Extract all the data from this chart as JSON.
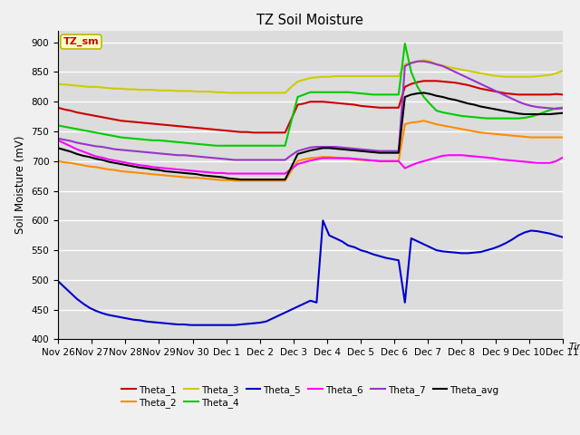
{
  "title": "TZ Soil Moisture",
  "ylabel": "Soil Moisture (mV)",
  "ylim": [
    400,
    920
  ],
  "yticks": [
    400,
    450,
    500,
    550,
    600,
    650,
    700,
    750,
    800,
    850,
    900
  ],
  "legend_label": "TZ_sm",
  "plot_bg": "#dcdcdc",
  "fig_bg": "#f0f0f0",
  "series_order": [
    "Theta_1",
    "Theta_2",
    "Theta_3",
    "Theta_4",
    "Theta_5",
    "Theta_6",
    "Theta_7",
    "Theta_avg"
  ],
  "series": {
    "Theta_1": {
      "color": "#cc0000",
      "x": [
        0,
        0.5,
        1,
        1.5,
        2,
        2.5,
        3,
        3.5,
        4,
        4.5,
        5,
        5.5,
        6,
        6.5,
        7,
        7.5,
        8,
        8.5,
        9,
        9.5,
        10,
        10.5,
        11,
        11.5,
        12,
        12.5,
        13,
        13.5,
        14,
        14.5,
        15,
        15.5,
        16,
        16.5,
        17,
        17.5,
        18,
        18.5,
        19,
        19.5,
        20,
        20.5,
        21,
        21.5,
        22,
        22.5,
        23,
        23.5,
        24,
        24.5,
        25,
        25.5,
        26,
        26.5,
        27,
        27.5,
        28,
        28.5,
        29,
        29.5,
        30,
        30.5,
        31,
        31.5,
        32,
        32.5,
        33,
        33.5,
        34,
        34.5,
        35,
        35.5,
        36,
        36.5,
        37,
        37.5,
        38,
        38.5,
        39,
        39.5,
        40,
        40.5
      ],
      "y": [
        790,
        787,
        785,
        782,
        780,
        778,
        776,
        774,
        772,
        770,
        768,
        767,
        766,
        765,
        764,
        763,
        762,
        761,
        760,
        759,
        758,
        757,
        756,
        755,
        754,
        753,
        752,
        751,
        750,
        749,
        749,
        748,
        748,
        748,
        748,
        748,
        748,
        771,
        795,
        797,
        800,
        800,
        800,
        799,
        798,
        797,
        796,
        795,
        793,
        792,
        791,
        790,
        790,
        790,
        790,
        825,
        830,
        833,
        835,
        835,
        835,
        834,
        833,
        832,
        830,
        828,
        825,
        822,
        820,
        818,
        816,
        814,
        813,
        812,
        812,
        812,
        812,
        812,
        812,
        813,
        812,
        811
      ]
    },
    "Theta_2": {
      "color": "#ff8c00",
      "x": [
        0,
        0.5,
        1,
        1.5,
        2,
        2.5,
        3,
        3.5,
        4,
        4.5,
        5,
        5.5,
        6,
        6.5,
        7,
        7.5,
        8,
        8.5,
        9,
        9.5,
        10,
        10.5,
        11,
        11.5,
        12,
        12.5,
        13,
        13.5,
        14,
        14.5,
        15,
        15.5,
        16,
        16.5,
        17,
        17.5,
        18,
        18.5,
        19,
        19.5,
        20,
        20.5,
        21,
        21.5,
        22,
        22.5,
        23,
        23.5,
        24,
        24.5,
        25,
        25.5,
        26,
        26.5,
        27,
        27.5,
        28,
        28.5,
        29,
        29.5,
        30,
        30.5,
        31,
        31.5,
        32,
        32.5,
        33,
        33.5,
        34,
        34.5,
        35,
        35.5,
        36,
        36.5,
        37,
        37.5,
        38,
        38.5,
        39,
        39.5,
        40,
        40.5
      ],
      "y": [
        700,
        698,
        697,
        695,
        693,
        691,
        690,
        688,
        686,
        685,
        683,
        682,
        681,
        680,
        679,
        678,
        677,
        676,
        675,
        674,
        673,
        672,
        672,
        671,
        670,
        669,
        668,
        668,
        667,
        667,
        667,
        667,
        667,
        667,
        667,
        667,
        667,
        684,
        700,
        703,
        705,
        706,
        707,
        707,
        706,
        705,
        704,
        703,
        702,
        701,
        701,
        700,
        700,
        700,
        700,
        762,
        765,
        766,
        768,
        765,
        762,
        760,
        758,
        756,
        754,
        752,
        750,
        748,
        747,
        746,
        745,
        744,
        743,
        742,
        741,
        740,
        740,
        740,
        740,
        740,
        740,
        740
      ]
    },
    "Theta_3": {
      "color": "#cccc00",
      "x": [
        0,
        0.5,
        1,
        1.5,
        2,
        2.5,
        3,
        3.5,
        4,
        4.5,
        5,
        5.5,
        6,
        6.5,
        7,
        7.5,
        8,
        8.5,
        9,
        9.5,
        10,
        10.5,
        11,
        11.5,
        12,
        12.5,
        13,
        13.5,
        14,
        14.5,
        15,
        15.5,
        16,
        16.5,
        17,
        17.5,
        18,
        18.5,
        19,
        19.5,
        20,
        20.5,
        21,
        21.5,
        22,
        22.5,
        23,
        23.5,
        24,
        24.5,
        25,
        25.5,
        26,
        26.5,
        27,
        27.5,
        28,
        28.5,
        29,
        29.5,
        30,
        30.5,
        31,
        31.5,
        32,
        32.5,
        33,
        33.5,
        34,
        34.5,
        35,
        35.5,
        36,
        36.5,
        37,
        37.5,
        38,
        38.5,
        39,
        39.5,
        40,
        40.5
      ],
      "y": [
        830,
        829,
        828,
        827,
        826,
        825,
        825,
        824,
        823,
        822,
        822,
        821,
        821,
        820,
        820,
        820,
        819,
        819,
        819,
        818,
        818,
        818,
        817,
        817,
        817,
        816,
        816,
        815,
        815,
        815,
        815,
        815,
        815,
        815,
        815,
        815,
        815,
        825,
        834,
        837,
        840,
        841,
        842,
        842,
        843,
        843,
        843,
        843,
        843,
        843,
        843,
        843,
        843,
        843,
        843,
        863,
        866,
        868,
        870,
        868,
        863,
        861,
        858,
        856,
        854,
        852,
        850,
        848,
        846,
        844,
        843,
        842,
        842,
        842,
        842,
        842,
        843,
        844,
        845,
        848,
        852,
        855
      ]
    },
    "Theta_4": {
      "color": "#00cc00",
      "x": [
        0,
        0.5,
        1,
        1.5,
        2,
        2.5,
        3,
        3.5,
        4,
        4.5,
        5,
        5.5,
        6,
        6.5,
        7,
        7.5,
        8,
        8.5,
        9,
        9.5,
        10,
        10.5,
        11,
        11.5,
        12,
        12.5,
        13,
        13.5,
        14,
        14.5,
        15,
        15.5,
        16,
        16.5,
        17,
        17.5,
        18,
        18.5,
        19,
        19.5,
        20,
        20.5,
        21,
        21.5,
        22,
        22.5,
        23,
        23.5,
        24,
        24.5,
        25,
        25.5,
        26,
        26.5,
        27,
        27.5,
        28,
        28.5,
        29,
        29.5,
        30,
        30.5,
        31,
        31.5,
        32,
        32.5,
        33,
        33.5,
        34,
        34.5,
        35,
        35.5,
        36,
        36.5,
        37,
        37.5,
        38,
        38.5,
        39,
        39.5,
        40,
        40.5
      ],
      "y": [
        760,
        758,
        756,
        754,
        752,
        750,
        748,
        746,
        744,
        742,
        740,
        739,
        738,
        737,
        736,
        735,
        735,
        734,
        733,
        732,
        731,
        730,
        729,
        728,
        727,
        726,
        726,
        726,
        726,
        726,
        726,
        726,
        726,
        726,
        726,
        726,
        726,
        768,
        808,
        812,
        816,
        816,
        816,
        816,
        816,
        816,
        816,
        815,
        814,
        813,
        812,
        812,
        812,
        812,
        812,
        898,
        850,
        825,
        808,
        796,
        785,
        782,
        780,
        778,
        776,
        775,
        774,
        773,
        772,
        772,
        772,
        772,
        772,
        772,
        773,
        775,
        778,
        782,
        786,
        789,
        790,
        790
      ]
    },
    "Theta_5": {
      "color": "#0000cc",
      "x": [
        0,
        0.5,
        1,
        1.5,
        2,
        2.5,
        3,
        3.5,
        4,
        4.5,
        5,
        5.5,
        6,
        6.5,
        7,
        7.5,
        8,
        8.5,
        9,
        9.5,
        10,
        10.5,
        11,
        11.5,
        12,
        12.5,
        13,
        13.5,
        14,
        14.5,
        15,
        15.5,
        16,
        16.5,
        17,
        17.5,
        18,
        18.5,
        19,
        19.5,
        20,
        20.5,
        21,
        21.5,
        22,
        22.5,
        23,
        23.5,
        24,
        24.5,
        25,
        25.5,
        26,
        26.5,
        27,
        27.5,
        28,
        28.5,
        29,
        29.5,
        30,
        30.5,
        31,
        31.5,
        32,
        32.5,
        33,
        33.5,
        34,
        34.5,
        35,
        35.5,
        36,
        36.5,
        37,
        37.5,
        38,
        38.5,
        39,
        39.5,
        40,
        40.5
      ],
      "y": [
        498,
        488,
        478,
        468,
        460,
        453,
        448,
        444,
        441,
        439,
        437,
        435,
        433,
        432,
        430,
        429,
        428,
        427,
        426,
        425,
        425,
        424,
        424,
        424,
        424,
        424,
        424,
        424,
        424,
        425,
        426,
        427,
        428,
        430,
        435,
        440,
        445,
        450,
        455,
        460,
        465,
        462,
        600,
        575,
        570,
        565,
        558,
        555,
        550,
        547,
        543,
        540,
        537,
        535,
        533,
        462,
        570,
        565,
        560,
        555,
        550,
        548,
        547,
        546,
        545,
        545,
        546,
        547,
        550,
        553,
        557,
        562,
        568,
        575,
        580,
        583,
        582,
        580,
        578,
        575,
        572,
        570
      ]
    },
    "Theta_6": {
      "color": "#ff00ff",
      "x": [
        0,
        0.5,
        1,
        1.5,
        2,
        2.5,
        3,
        3.5,
        4,
        4.5,
        5,
        5.5,
        6,
        6.5,
        7,
        7.5,
        8,
        8.5,
        9,
        9.5,
        10,
        10.5,
        11,
        11.5,
        12,
        12.5,
        13,
        13.5,
        14,
        14.5,
        15,
        15.5,
        16,
        16.5,
        17,
        17.5,
        18,
        18.5,
        19,
        19.5,
        20,
        20.5,
        21,
        21.5,
        22,
        22.5,
        23,
        23.5,
        24,
        24.5,
        25,
        25.5,
        26,
        26.5,
        27,
        27.5,
        28,
        28.5,
        29,
        29.5,
        30,
        30.5,
        31,
        31.5,
        32,
        32.5,
        33,
        33.5,
        34,
        34.5,
        35,
        35.5,
        36,
        36.5,
        37,
        37.5,
        38,
        38.5,
        39,
        39.5,
        40,
        40.5
      ],
      "y": [
        735,
        730,
        725,
        720,
        716,
        712,
        708,
        706,
        703,
        701,
        699,
        697,
        695,
        693,
        692,
        690,
        689,
        688,
        687,
        686,
        685,
        684,
        683,
        682,
        681,
        680,
        680,
        679,
        679,
        679,
        679,
        679,
        679,
        679,
        679,
        679,
        679,
        687,
        695,
        698,
        701,
        703,
        705,
        705,
        705,
        705,
        705,
        704,
        703,
        702,
        701,
        700,
        700,
        700,
        700,
        688,
        693,
        697,
        700,
        703,
        706,
        709,
        710,
        710,
        710,
        709,
        708,
        707,
        706,
        705,
        703,
        702,
        701,
        700,
        699,
        698,
        697,
        697,
        697,
        700,
        706,
        712
      ]
    },
    "Theta_7": {
      "color": "#9933cc",
      "x": [
        0,
        0.5,
        1,
        1.5,
        2,
        2.5,
        3,
        3.5,
        4,
        4.5,
        5,
        5.5,
        6,
        6.5,
        7,
        7.5,
        8,
        8.5,
        9,
        9.5,
        10,
        10.5,
        11,
        11.5,
        12,
        12.5,
        13,
        13.5,
        14,
        14.5,
        15,
        15.5,
        16,
        16.5,
        17,
        17.5,
        18,
        18.5,
        19,
        19.5,
        20,
        20.5,
        21,
        21.5,
        22,
        22.5,
        23,
        23.5,
        24,
        24.5,
        25,
        25.5,
        26,
        26.5,
        27,
        27.5,
        28,
        28.5,
        29,
        29.5,
        30,
        30.5,
        31,
        31.5,
        32,
        32.5,
        33,
        33.5,
        34,
        34.5,
        35,
        35.5,
        36,
        36.5,
        37,
        37.5,
        38,
        38.5,
        39,
        39.5,
        40,
        40.5
      ],
      "y": [
        738,
        736,
        734,
        731,
        729,
        727,
        725,
        724,
        722,
        720,
        719,
        718,
        717,
        716,
        715,
        714,
        713,
        712,
        711,
        710,
        710,
        709,
        708,
        707,
        706,
        705,
        704,
        703,
        702,
        702,
        702,
        702,
        702,
        702,
        702,
        702,
        702,
        710,
        717,
        720,
        723,
        724,
        724,
        724,
        724,
        723,
        722,
        721,
        720,
        719,
        718,
        717,
        717,
        717,
        717,
        860,
        865,
        868,
        868,
        866,
        863,
        860,
        855,
        850,
        845,
        840,
        835,
        830,
        825,
        820,
        815,
        810,
        805,
        800,
        796,
        793,
        791,
        790,
        789,
        788,
        789,
        790
      ]
    },
    "Theta_avg": {
      "color": "#000000",
      "x": [
        0,
        0.5,
        1,
        1.5,
        2,
        2.5,
        3,
        3.5,
        4,
        4.5,
        5,
        5.5,
        6,
        6.5,
        7,
        7.5,
        8,
        8.5,
        9,
        9.5,
        10,
        10.5,
        11,
        11.5,
        12,
        12.5,
        13,
        13.5,
        14,
        14.5,
        15,
        15.5,
        16,
        16.5,
        17,
        17.5,
        18,
        18.5,
        19,
        19.5,
        20,
        20.5,
        21,
        21.5,
        22,
        22.5,
        23,
        23.5,
        24,
        24.5,
        25,
        25.5,
        26,
        26.5,
        27,
        27.5,
        28,
        28.5,
        29,
        29.5,
        30,
        30.5,
        31,
        31.5,
        32,
        32.5,
        33,
        33.5,
        34,
        34.5,
        35,
        35.5,
        36,
        36.5,
        37,
        37.5,
        38,
        38.5,
        39,
        39.5,
        40,
        40.5
      ],
      "y": [
        722,
        719,
        716,
        712,
        709,
        707,
        704,
        702,
        699,
        697,
        695,
        693,
        691,
        689,
        688,
        686,
        685,
        683,
        682,
        681,
        680,
        679,
        678,
        676,
        675,
        674,
        673,
        671,
        670,
        669,
        669,
        669,
        669,
        669,
        669,
        669,
        669,
        690,
        712,
        715,
        718,
        720,
        722,
        722,
        721,
        720,
        719,
        718,
        717,
        716,
        715,
        714,
        714,
        714,
        714,
        808,
        812,
        814,
        815,
        813,
        810,
        808,
        805,
        803,
        800,
        797,
        795,
        792,
        790,
        788,
        786,
        784,
        782,
        780,
        779,
        779,
        779,
        779,
        779,
        780,
        781,
        781
      ]
    }
  },
  "x_tick_labels": [
    "Nov 26",
    "Nov 27",
    "Nov 28",
    "Nov 29",
    "Nov 30",
    "Dec 1",
    "Dec 2",
    "Dec 3",
    "Dec 4",
    "Dec 5",
    "Dec 6",
    "Dec 7",
    "Dec 8",
    "Dec 9",
    "Dec 10",
    "Dec 11"
  ],
  "x_tick_positions": [
    0,
    2.67,
    5.33,
    8,
    10.67,
    13.33,
    16,
    18.67,
    21.33,
    24,
    26.67,
    29.33,
    32,
    34.67,
    37.33,
    40
  ]
}
